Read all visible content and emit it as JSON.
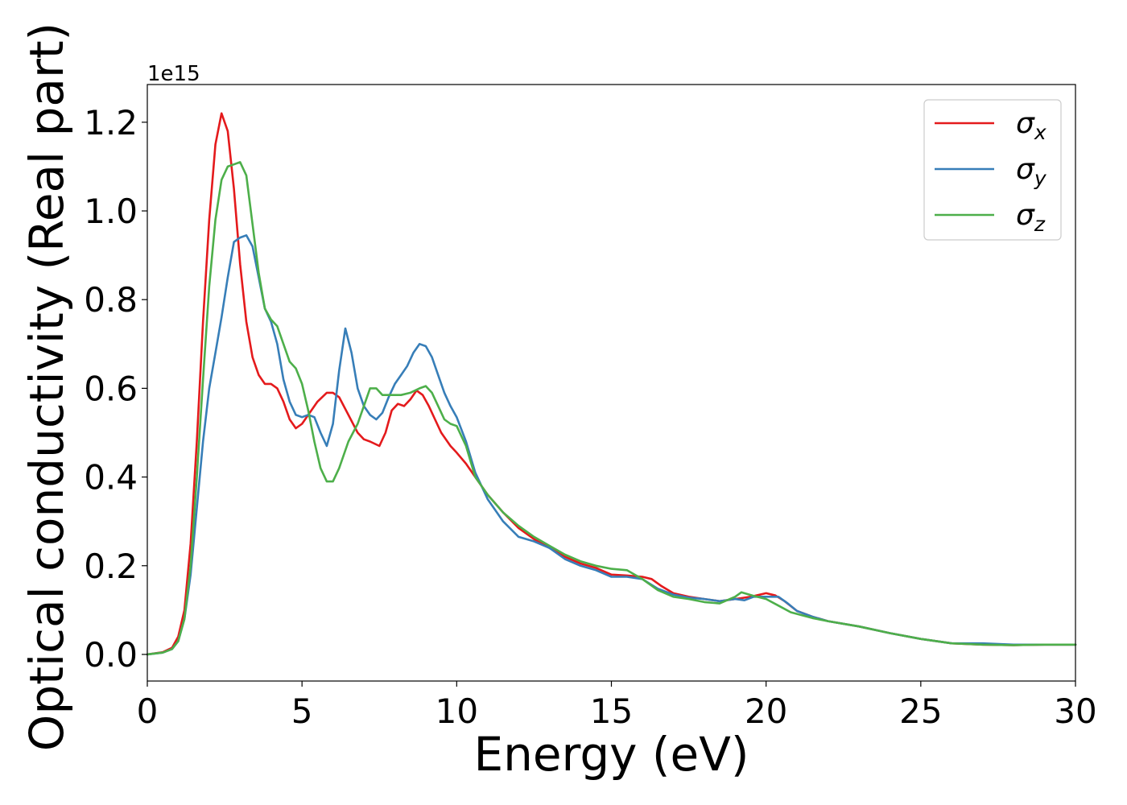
{
  "chart_data": {
    "type": "line",
    "title": "",
    "xlabel": "Energy (eV)",
    "ylabel": "Optical conductivity (Real part)",
    "y_offset_text": "1e15",
    "xlim": [
      0,
      30
    ],
    "ylim": [
      -0.06,
      1.285
    ],
    "x_ticks": [
      0,
      5,
      10,
      15,
      20,
      25,
      30
    ],
    "y_ticks": [
      0.0,
      0.2,
      0.4,
      0.6,
      0.8,
      1.0,
      1.2
    ],
    "x_tick_labels": [
      "0",
      "5",
      "10",
      "15",
      "20",
      "25",
      "30"
    ],
    "y_tick_labels": [
      "0.0",
      "0.2",
      "0.4",
      "0.6",
      "0.8",
      "1.0",
      "1.2"
    ],
    "grid": false,
    "legend_position": "top-right",
    "series": [
      {
        "name": "x",
        "color": "#e41a1c",
        "points": [
          [
            0,
            0
          ],
          [
            0.5,
            0.005
          ],
          [
            0.8,
            0.015
          ],
          [
            1.0,
            0.04
          ],
          [
            1.2,
            0.1
          ],
          [
            1.4,
            0.25
          ],
          [
            1.6,
            0.48
          ],
          [
            1.8,
            0.75
          ],
          [
            2.0,
            0.98
          ],
          [
            2.2,
            1.15
          ],
          [
            2.4,
            1.22
          ],
          [
            2.6,
            1.18
          ],
          [
            2.8,
            1.05
          ],
          [
            3.0,
            0.88
          ],
          [
            3.2,
            0.75
          ],
          [
            3.4,
            0.67
          ],
          [
            3.6,
            0.63
          ],
          [
            3.8,
            0.61
          ],
          [
            4.0,
            0.61
          ],
          [
            4.2,
            0.6
          ],
          [
            4.4,
            0.57
          ],
          [
            4.6,
            0.53
          ],
          [
            4.8,
            0.51
          ],
          [
            5.0,
            0.52
          ],
          [
            5.2,
            0.54
          ],
          [
            5.5,
            0.57
          ],
          [
            5.8,
            0.59
          ],
          [
            6.0,
            0.59
          ],
          [
            6.2,
            0.58
          ],
          [
            6.5,
            0.54
          ],
          [
            6.8,
            0.5
          ],
          [
            7.0,
            0.485
          ],
          [
            7.2,
            0.48
          ],
          [
            7.5,
            0.47
          ],
          [
            7.7,
            0.5
          ],
          [
            7.9,
            0.55
          ],
          [
            8.1,
            0.565
          ],
          [
            8.3,
            0.56
          ],
          [
            8.5,
            0.575
          ],
          [
            8.7,
            0.595
          ],
          [
            8.9,
            0.585
          ],
          [
            9.1,
            0.56
          ],
          [
            9.3,
            0.53
          ],
          [
            9.5,
            0.5
          ],
          [
            9.8,
            0.47
          ],
          [
            10.0,
            0.455
          ],
          [
            10.3,
            0.43
          ],
          [
            10.6,
            0.4
          ],
          [
            11.0,
            0.36
          ],
          [
            11.5,
            0.32
          ],
          [
            12.0,
            0.285
          ],
          [
            12.5,
            0.26
          ],
          [
            13.0,
            0.24
          ],
          [
            13.5,
            0.22
          ],
          [
            14.0,
            0.205
          ],
          [
            14.5,
            0.195
          ],
          [
            15.0,
            0.18
          ],
          [
            15.5,
            0.178
          ],
          [
            16.0,
            0.175
          ],
          [
            16.3,
            0.17
          ],
          [
            16.6,
            0.155
          ],
          [
            17.0,
            0.138
          ],
          [
            17.5,
            0.13
          ],
          [
            18.0,
            0.125
          ],
          [
            18.5,
            0.12
          ],
          [
            19.0,
            0.125
          ],
          [
            19.5,
            0.13
          ],
          [
            20.0,
            0.138
          ],
          [
            20.3,
            0.133
          ],
          [
            20.6,
            0.12
          ],
          [
            21.0,
            0.098
          ],
          [
            21.5,
            0.085
          ],
          [
            22.0,
            0.075
          ],
          [
            23.0,
            0.063
          ],
          [
            24.0,
            0.048
          ],
          [
            25.0,
            0.035
          ],
          [
            26.0,
            0.025
          ],
          [
            27.0,
            0.022
          ],
          [
            28.0,
            0.021
          ],
          [
            29.0,
            0.022
          ],
          [
            30.0,
            0.022
          ]
        ]
      },
      {
        "name": "y",
        "color": "#377eb8",
        "points": [
          [
            0,
            0
          ],
          [
            0.5,
            0.004
          ],
          [
            0.8,
            0.012
          ],
          [
            1.0,
            0.03
          ],
          [
            1.2,
            0.08
          ],
          [
            1.4,
            0.18
          ],
          [
            1.6,
            0.33
          ],
          [
            1.8,
            0.48
          ],
          [
            2.0,
            0.6
          ],
          [
            2.2,
            0.68
          ],
          [
            2.4,
            0.76
          ],
          [
            2.6,
            0.85
          ],
          [
            2.8,
            0.93
          ],
          [
            3.0,
            0.94
          ],
          [
            3.2,
            0.945
          ],
          [
            3.4,
            0.92
          ],
          [
            3.6,
            0.85
          ],
          [
            3.8,
            0.78
          ],
          [
            4.0,
            0.75
          ],
          [
            4.2,
            0.7
          ],
          [
            4.4,
            0.62
          ],
          [
            4.6,
            0.57
          ],
          [
            4.8,
            0.54
          ],
          [
            5.0,
            0.535
          ],
          [
            5.2,
            0.54
          ],
          [
            5.4,
            0.535
          ],
          [
            5.6,
            0.5
          ],
          [
            5.8,
            0.47
          ],
          [
            6.0,
            0.52
          ],
          [
            6.2,
            0.64
          ],
          [
            6.4,
            0.735
          ],
          [
            6.6,
            0.68
          ],
          [
            6.8,
            0.6
          ],
          [
            7.0,
            0.56
          ],
          [
            7.2,
            0.54
          ],
          [
            7.4,
            0.53
          ],
          [
            7.6,
            0.545
          ],
          [
            7.8,
            0.58
          ],
          [
            8.0,
            0.61
          ],
          [
            8.2,
            0.63
          ],
          [
            8.4,
            0.65
          ],
          [
            8.6,
            0.68
          ],
          [
            8.8,
            0.7
          ],
          [
            9.0,
            0.695
          ],
          [
            9.2,
            0.67
          ],
          [
            9.4,
            0.63
          ],
          [
            9.6,
            0.59
          ],
          [
            9.8,
            0.56
          ],
          [
            10.0,
            0.535
          ],
          [
            10.3,
            0.48
          ],
          [
            10.6,
            0.41
          ],
          [
            11.0,
            0.35
          ],
          [
            11.5,
            0.3
          ],
          [
            12.0,
            0.265
          ],
          [
            12.5,
            0.255
          ],
          [
            13.0,
            0.24
          ],
          [
            13.5,
            0.215
          ],
          [
            14.0,
            0.2
          ],
          [
            14.5,
            0.19
          ],
          [
            15.0,
            0.175
          ],
          [
            15.5,
            0.175
          ],
          [
            16.0,
            0.17
          ],
          [
            16.5,
            0.148
          ],
          [
            17.0,
            0.135
          ],
          [
            17.5,
            0.128
          ],
          [
            18.0,
            0.125
          ],
          [
            18.5,
            0.12
          ],
          [
            19.0,
            0.125
          ],
          [
            19.3,
            0.122
          ],
          [
            19.6,
            0.13
          ],
          [
            20.0,
            0.13
          ],
          [
            20.4,
            0.13
          ],
          [
            20.7,
            0.115
          ],
          [
            21.0,
            0.098
          ],
          [
            21.5,
            0.085
          ],
          [
            22.0,
            0.075
          ],
          [
            23.0,
            0.063
          ],
          [
            24.0,
            0.048
          ],
          [
            25.0,
            0.035
          ],
          [
            26.0,
            0.025
          ],
          [
            27.0,
            0.025
          ],
          [
            28.0,
            0.022
          ],
          [
            29.0,
            0.022
          ],
          [
            30.0,
            0.022
          ]
        ]
      },
      {
        "name": "z",
        "color": "#4daf4a",
        "points": [
          [
            0,
            0
          ],
          [
            0.5,
            0.004
          ],
          [
            0.8,
            0.012
          ],
          [
            1.0,
            0.03
          ],
          [
            1.2,
            0.08
          ],
          [
            1.4,
            0.2
          ],
          [
            1.6,
            0.4
          ],
          [
            1.8,
            0.62
          ],
          [
            2.0,
            0.83
          ],
          [
            2.2,
            0.98
          ],
          [
            2.4,
            1.07
          ],
          [
            2.6,
            1.1
          ],
          [
            2.8,
            1.105
          ],
          [
            3.0,
            1.11
          ],
          [
            3.2,
            1.08
          ],
          [
            3.4,
            0.97
          ],
          [
            3.6,
            0.86
          ],
          [
            3.8,
            0.78
          ],
          [
            4.0,
            0.755
          ],
          [
            4.2,
            0.74
          ],
          [
            4.4,
            0.7
          ],
          [
            4.6,
            0.66
          ],
          [
            4.8,
            0.645
          ],
          [
            5.0,
            0.61
          ],
          [
            5.2,
            0.55
          ],
          [
            5.4,
            0.48
          ],
          [
            5.6,
            0.42
          ],
          [
            5.8,
            0.39
          ],
          [
            6.0,
            0.39
          ],
          [
            6.2,
            0.42
          ],
          [
            6.5,
            0.48
          ],
          [
            6.8,
            0.52
          ],
          [
            7.0,
            0.56
          ],
          [
            7.2,
            0.6
          ],
          [
            7.4,
            0.6
          ],
          [
            7.6,
            0.585
          ],
          [
            7.8,
            0.585
          ],
          [
            8.0,
            0.585
          ],
          [
            8.2,
            0.585
          ],
          [
            8.5,
            0.59
          ],
          [
            8.8,
            0.6
          ],
          [
            9.0,
            0.605
          ],
          [
            9.2,
            0.59
          ],
          [
            9.4,
            0.56
          ],
          [
            9.6,
            0.53
          ],
          [
            9.8,
            0.52
          ],
          [
            10.0,
            0.515
          ],
          [
            10.3,
            0.47
          ],
          [
            10.6,
            0.4
          ],
          [
            11.0,
            0.36
          ],
          [
            11.5,
            0.32
          ],
          [
            12.0,
            0.29
          ],
          [
            12.5,
            0.265
          ],
          [
            13.0,
            0.245
          ],
          [
            13.5,
            0.225
          ],
          [
            14.0,
            0.21
          ],
          [
            14.5,
            0.2
          ],
          [
            15.0,
            0.193
          ],
          [
            15.5,
            0.19
          ],
          [
            16.0,
            0.17
          ],
          [
            16.5,
            0.145
          ],
          [
            17.0,
            0.13
          ],
          [
            17.5,
            0.125
          ],
          [
            18.0,
            0.118
          ],
          [
            18.5,
            0.115
          ],
          [
            19.0,
            0.13
          ],
          [
            19.2,
            0.14
          ],
          [
            19.6,
            0.132
          ],
          [
            20.0,
            0.125
          ],
          [
            20.4,
            0.11
          ],
          [
            20.8,
            0.095
          ],
          [
            21.5,
            0.082
          ],
          [
            22.0,
            0.075
          ],
          [
            23.0,
            0.063
          ],
          [
            24.0,
            0.048
          ],
          [
            25.0,
            0.035
          ],
          [
            26.0,
            0.025
          ],
          [
            27.0,
            0.022
          ],
          [
            28.0,
            0.021
          ],
          [
            29.0,
            0.022
          ],
          [
            30.0,
            0.022
          ]
        ]
      }
    ],
    "legend": [
      {
        "symbol": "σ",
        "sub": "x",
        "color": "#e41a1c"
      },
      {
        "symbol": "σ",
        "sub": "y",
        "color": "#377eb8"
      },
      {
        "symbol": "σ",
        "sub": "z",
        "color": "#4daf4a"
      }
    ]
  }
}
